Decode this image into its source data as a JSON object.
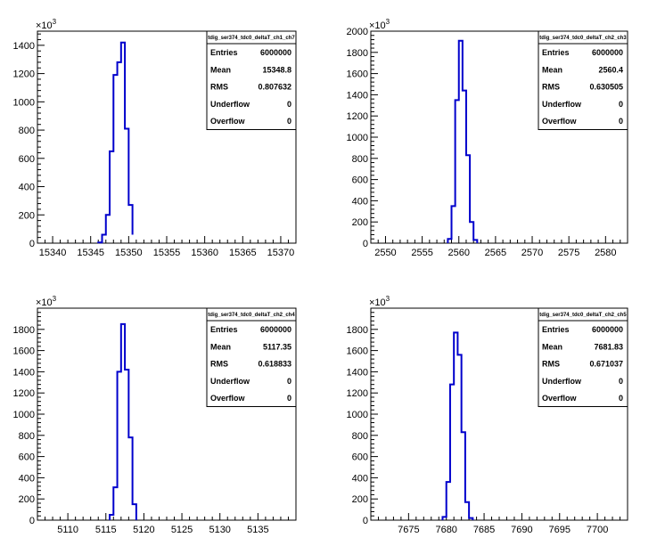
{
  "chart_data": [
    {
      "type": "histogram",
      "stats": {
        "name": "tdig_ser374_tdc0_deltaT_ch1_ch7",
        "rows": [
          {
            "label": "Entries",
            "value": "6000000"
          },
          {
            "label": "Mean",
            "value": "15348.8"
          },
          {
            "label": "RMS",
            "value": "0.807632"
          },
          {
            "label": "Underflow",
            "value": "0"
          },
          {
            "label": "Overflow",
            "value": "0"
          }
        ]
      },
      "xlim": [
        15338,
        15372
      ],
      "ylim": [
        0,
        1500
      ],
      "y_multiplier_label": "×10",
      "y_multiplier_exponent": "3",
      "x_ticks": [
        15340,
        15345,
        15350,
        15355,
        15360,
        15365,
        15370
      ],
      "y_ticks": [
        0,
        200,
        400,
        600,
        800,
        1000,
        1200,
        1400
      ],
      "bin_edges": [
        15346.0,
        15346.5,
        15347.0,
        15347.5,
        15348.0,
        15348.5,
        15349.0,
        15349.5,
        15350.0,
        15350.5
      ],
      "values": [
        5,
        60,
        200,
        650,
        1190,
        1280,
        1420,
        810,
        270,
        60
      ]
    },
    {
      "type": "histogram",
      "stats": {
        "name": "tdig_ser374_tdc0_deltaT_ch2_ch3",
        "rows": [
          {
            "label": "Entries",
            "value": "6000000"
          },
          {
            "label": "Mean",
            "value": "2560.4"
          },
          {
            "label": "RMS",
            "value": "0.630505"
          },
          {
            "label": "Underflow",
            "value": "0"
          },
          {
            "label": "Overflow",
            "value": "0"
          }
        ]
      },
      "xlim": [
        2548,
        2583
      ],
      "ylim": [
        0,
        2000
      ],
      "y_multiplier_label": "×10",
      "y_multiplier_exponent": "3",
      "x_ticks": [
        2550,
        2555,
        2560,
        2565,
        2570,
        2575,
        2580
      ],
      "y_ticks": [
        0,
        200,
        400,
        600,
        800,
        1000,
        1200,
        1400,
        1600,
        1800,
        2000
      ],
      "bin_edges": [
        2558.5,
        2559.0,
        2559.5,
        2560.0,
        2560.5,
        2561.0,
        2561.5,
        2562.0,
        2562.5
      ],
      "values": [
        40,
        350,
        1350,
        1910,
        1440,
        830,
        200,
        30
      ]
    },
    {
      "type": "histogram",
      "stats": {
        "name": "tdig_ser374_tdc0_deltaT_ch2_ch4",
        "rows": [
          {
            "label": "Entries",
            "value": "6000000"
          },
          {
            "label": "Mean",
            "value": "5117.35"
          },
          {
            "label": "RMS",
            "value": "0.618833"
          },
          {
            "label": "Underflow",
            "value": "0"
          },
          {
            "label": "Overflow",
            "value": "0"
          }
        ]
      },
      "xlim": [
        5106,
        5140
      ],
      "ylim": [
        0,
        2000
      ],
      "y_multiplier_label": "×10",
      "y_multiplier_exponent": "3",
      "x_ticks": [
        5110,
        5115,
        5120,
        5125,
        5130,
        5135
      ],
      "y_ticks": [
        0,
        200,
        400,
        600,
        800,
        1000,
        1200,
        1400,
        1600,
        1800
      ],
      "bin_edges": [
        5115.5,
        5116.0,
        5116.5,
        5117.0,
        5117.5,
        5118.0,
        5118.5,
        5119.0
      ],
      "values": [
        50,
        310,
        1400,
        1850,
        1420,
        780,
        150
      ]
    },
    {
      "type": "histogram",
      "stats": {
        "name": "tdig_ser374_tdc0_deltaT_ch2_ch5",
        "rows": [
          {
            "label": "Entries",
            "value": "6000000"
          },
          {
            "label": "Mean",
            "value": "7681.83"
          },
          {
            "label": "RMS",
            "value": "0.671037"
          },
          {
            "label": "Underflow",
            "value": "0"
          },
          {
            "label": "Overflow",
            "value": "0"
          }
        ]
      },
      "xlim": [
        7670,
        7704
      ],
      "ylim": [
        0,
        2000
      ],
      "y_multiplier_label": "×10",
      "y_multiplier_exponent": "3",
      "x_ticks": [
        7675,
        7680,
        7685,
        7690,
        7695,
        7700
      ],
      "y_ticks": [
        0,
        200,
        400,
        600,
        800,
        1000,
        1200,
        1400,
        1600,
        1800
      ],
      "bin_edges": [
        7679.5,
        7680.0,
        7680.5,
        7681.0,
        7681.5,
        7682.0,
        7682.5,
        7683.0,
        7683.5
      ],
      "values": [
        30,
        360,
        1280,
        1770,
        1560,
        830,
        170,
        20
      ]
    }
  ],
  "colors": {
    "histogram_line": "#0000cc",
    "axis": "#000000",
    "stat_box_border": "#000000",
    "background": "#ffffff"
  }
}
